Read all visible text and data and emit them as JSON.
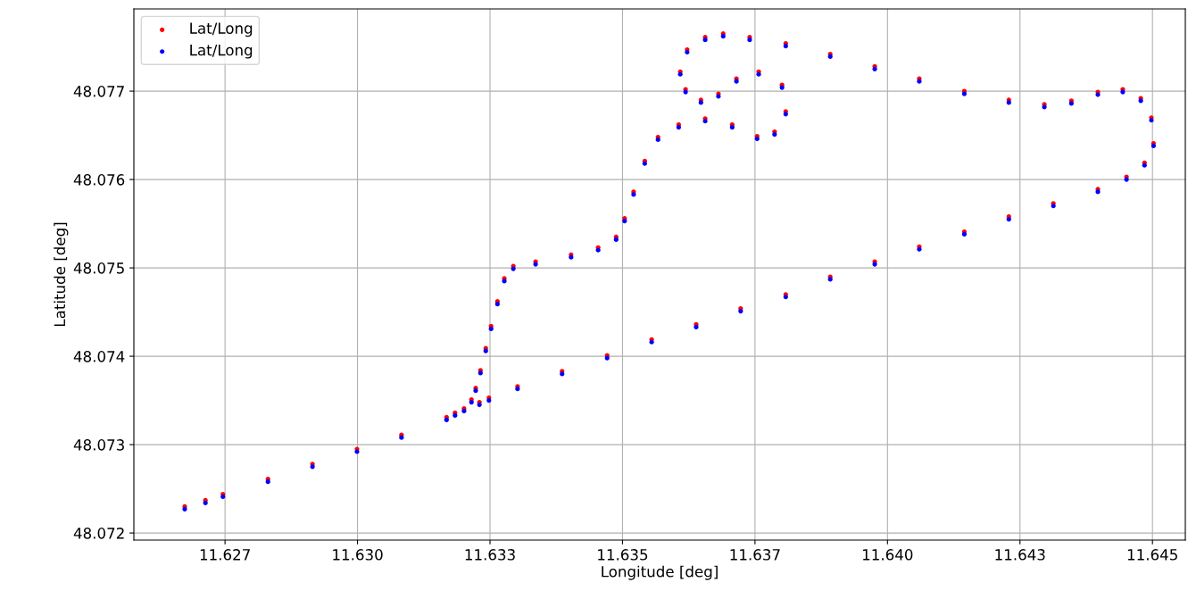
{
  "chart_data": {
    "type": "scatter",
    "xlabel": "Longitude [deg]",
    "ylabel": "Latitude [deg]",
    "x": [
      11.62674,
      11.62713,
      11.62746,
      11.62831,
      11.62915,
      11.62999,
      11.63083,
      11.63168,
      11.63201,
      11.63215,
      11.63223,
      11.63232,
      11.63242,
      11.63252,
      11.63264,
      11.63277,
      11.63294,
      11.63336,
      11.63403,
      11.63454,
      11.63488,
      11.63504,
      11.63521,
      11.63542,
      11.63567,
      11.63606,
      11.63656,
      11.63707,
      11.63754,
      11.63787,
      11.63808,
      11.63801,
      11.63757,
      11.63715,
      11.63681,
      11.63648,
      11.63619,
      11.63609,
      11.63622,
      11.63656,
      11.6369,
      11.6374,
      11.63808,
      11.63892,
      11.63976,
      11.6406,
      11.64145,
      11.64229,
      11.64296,
      11.64347,
      11.64397,
      11.64444,
      11.64478,
      11.64498,
      11.64502,
      11.64485,
      11.64451,
      11.64397,
      11.64313,
      11.64229,
      11.64145,
      11.6406,
      11.63976,
      11.63892,
      11.63808,
      11.63723,
      11.63639,
      11.63555,
      11.63471,
      11.63386,
      11.63302,
      11.63248,
      11.6323,
      11.63184
    ],
    "series": [
      {
        "name": "Lat/Long",
        "color": "#ff0000",
        "values": [
          48.0723,
          48.07237,
          48.07244,
          48.07261,
          48.07278,
          48.07295,
          48.07311,
          48.07331,
          48.07341,
          48.07351,
          48.07364,
          48.07384,
          48.07409,
          48.07434,
          48.07462,
          48.07488,
          48.07502,
          48.07507,
          48.07515,
          48.07523,
          48.07535,
          48.07556,
          48.07586,
          48.07621,
          48.07648,
          48.07662,
          48.07669,
          48.07662,
          48.07649,
          48.07654,
          48.07677,
          48.07707,
          48.07722,
          48.07714,
          48.07697,
          48.0769,
          48.07702,
          48.07722,
          48.07747,
          48.07761,
          48.07765,
          48.07761,
          48.07754,
          48.07742,
          48.07728,
          48.07714,
          48.077,
          48.0769,
          48.07685,
          48.07689,
          48.07699,
          48.07702,
          48.07692,
          48.0767,
          48.07641,
          48.07619,
          48.07603,
          48.07589,
          48.07573,
          48.07558,
          48.07541,
          48.07524,
          48.07507,
          48.0749,
          48.0747,
          48.07454,
          48.07436,
          48.07419,
          48.07401,
          48.07383,
          48.07366,
          48.07353,
          48.07348,
          48.07336
        ]
      },
      {
        "name": "Lat/Long",
        "color": "#0000ff",
        "values": [
          48.07227,
          48.07234,
          48.07241,
          48.07258,
          48.07275,
          48.07292,
          48.07308,
          48.07328,
          48.07338,
          48.07348,
          48.07361,
          48.07381,
          48.07406,
          48.07431,
          48.07459,
          48.07485,
          48.07499,
          48.07504,
          48.07512,
          48.0752,
          48.07532,
          48.07553,
          48.07583,
          48.07618,
          48.07645,
          48.07659,
          48.07666,
          48.07659,
          48.07646,
          48.07651,
          48.07674,
          48.07704,
          48.07719,
          48.07711,
          48.07694,
          48.07687,
          48.07699,
          48.07719,
          48.07744,
          48.07758,
          48.07762,
          48.07758,
          48.07751,
          48.07739,
          48.07725,
          48.07711,
          48.07697,
          48.07687,
          48.07682,
          48.07686,
          48.07696,
          48.07699,
          48.07689,
          48.07667,
          48.07638,
          48.07616,
          48.076,
          48.07586,
          48.0757,
          48.07555,
          48.07538,
          48.07521,
          48.07504,
          48.07487,
          48.07467,
          48.07451,
          48.07433,
          48.07416,
          48.07398,
          48.0738,
          48.07363,
          48.0735,
          48.07345,
          48.07333
        ]
      }
    ],
    "xlim": [
      11.62578,
      11.64562
    ],
    "ylim": [
      48.07192,
      48.07793
    ],
    "xticks": [
      {
        "value": 11.6275,
        "label": "11.627"
      },
      {
        "value": 11.63,
        "label": "11.630"
      },
      {
        "value": 11.6325,
        "label": "11.633"
      },
      11.635,
      {
        "value": 11.6375,
        "label": "11.637"
      },
      {
        "value": 11.64,
        "label": "11.640"
      },
      {
        "value": 11.6425,
        "label": "11.643"
      },
      11.645
    ],
    "yticks": [
      48.072,
      48.073,
      48.074,
      48.075,
      48.076,
      48.077
    ],
    "grid": true,
    "legend": "top left",
    "marker": "circle"
  }
}
